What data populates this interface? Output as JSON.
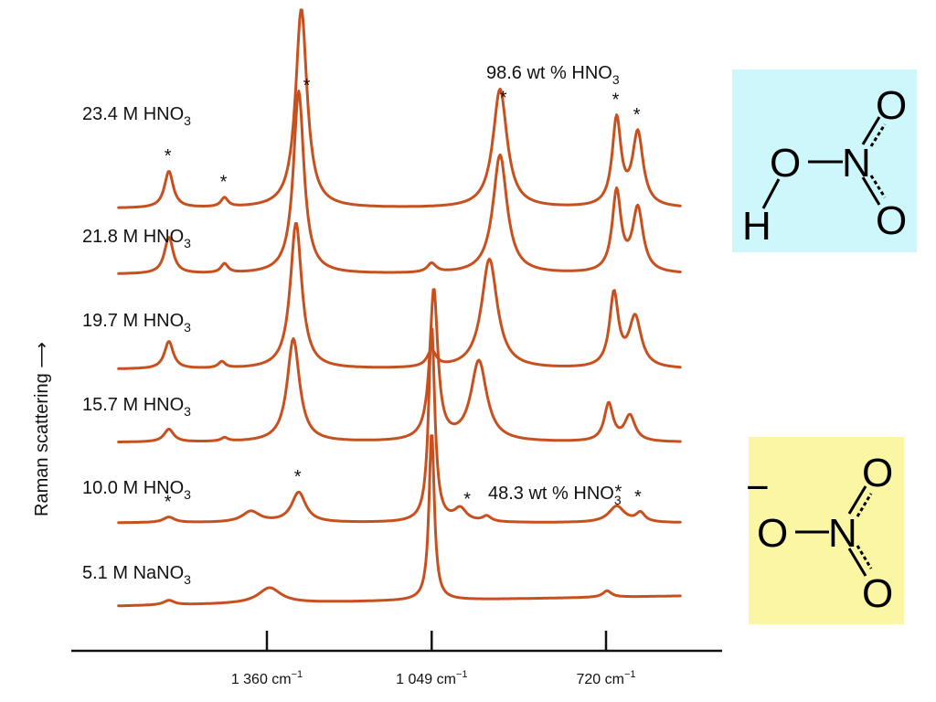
{
  "chart_data": {
    "type": "line",
    "title": "",
    "ylabel": "Raman scattering",
    "xlabel": "",
    "x_unit": "cm⁻¹",
    "x_direction": "decreasing",
    "xlim": [
      1640,
      530
    ],
    "xticks": [
      {
        "value": 1360,
        "label": "1 360 cm",
        "sup": "−1"
      },
      {
        "value": 1049,
        "label": "1 049 cm",
        "sup": "−1"
      },
      {
        "value": 720,
        "label": "720 cm",
        "sup": "−1"
      }
    ],
    "series": [
      {
        "name": "5.1 M NaNO3",
        "label_main": "5.1 M NaNO",
        "label_sub": "3",
        "baseline": [
          [
            1640,
            0
          ],
          [
            580,
            11
          ]
        ],
        "peaks": [
          [
            1545,
            5,
            12
          ],
          [
            1355,
            17,
            26
          ],
          [
            1049,
            185,
            6
          ],
          [
            718,
            7,
            10
          ]
        ]
      },
      {
        "name": "10.0 M HNO3",
        "label_main": "10.0 M HNO",
        "label_sub": "3",
        "baseline": [
          [
            1640,
            0
          ],
          [
            580,
            0
          ]
        ],
        "peaks": [
          [
            1545,
            6,
            13
          ],
          [
            1390,
            12,
            20
          ],
          [
            1300,
            33,
            16
          ],
          [
            1049,
            215,
            7
          ],
          [
            995,
            14,
            14
          ],
          [
            945,
            6,
            10
          ],
          [
            700,
            18,
            18
          ],
          [
            655,
            10,
            10
          ]
        ],
        "stars_at": [
          1545,
          1300,
          980,
          695,
          658
        ]
      },
      {
        "name": "15.7 M HNO3",
        "label_main": "15.7 M HNO",
        "label_sub": "3",
        "baseline": [
          [
            1640,
            0
          ],
          [
            580,
            0
          ]
        ],
        "peaks": [
          [
            1545,
            14,
            11
          ],
          [
            1440,
            4,
            8
          ],
          [
            1310,
            113,
            14
          ],
          [
            1045,
            165,
            9
          ],
          [
            960,
            88,
            18
          ],
          [
            715,
            41,
            10
          ],
          [
            675,
            28,
            12
          ]
        ]
      },
      {
        "name": "19.7 M HNO3",
        "label_main": "19.7 M HNO",
        "label_sub": "3",
        "baseline": [
          [
            1640,
            0
          ],
          [
            580,
            0
          ]
        ],
        "peaks": [
          [
            1545,
            30,
            10
          ],
          [
            1445,
            7,
            8
          ],
          [
            1305,
            160,
            13
          ],
          [
            1049,
            18,
            10
          ],
          [
            940,
            120,
            18
          ],
          [
            705,
            80,
            10
          ],
          [
            665,
            55,
            14
          ]
        ]
      },
      {
        "name": "21.8 M HNO3",
        "label_main": "21.8 M HNO",
        "label_sub": "3",
        "baseline": [
          [
            1640,
            0
          ],
          [
            580,
            0
          ]
        ],
        "peaks": [
          [
            1545,
            40,
            10
          ],
          [
            1440,
            10,
            8
          ],
          [
            1300,
            200,
            12
          ],
          [
            1049,
            10,
            10
          ],
          [
            920,
            130,
            16
          ],
          [
            700,
            88,
            10
          ],
          [
            660,
            70,
            12
          ]
        ]
      },
      {
        "name": "23.4 M HNO3",
        "label_main": "23.4 M HNO",
        "label_sub": "3",
        "baseline": [
          [
            1640,
            0
          ],
          [
            580,
            0
          ]
        ],
        "peaks": [
          [
            1545,
            40,
            10
          ],
          [
            1440,
            10,
            8
          ],
          [
            1295,
            218,
            13
          ],
          [
            920,
            130,
            16
          ],
          [
            700,
            95,
            10
          ],
          [
            660,
            80,
            12
          ]
        ],
        "stars_at": [
          1545,
          1440,
          1283,
          912,
          700,
          660
        ]
      }
    ],
    "annotations": [
      {
        "id": "hno3-98",
        "main": "98.6 wt % HNO",
        "sub": "3"
      },
      {
        "id": "hno3-48",
        "main": "48.3 wt % HNO",
        "sub": "3"
      }
    ],
    "structures": [
      {
        "id": "nitric-acid",
        "name": "HNO3 structure",
        "background": "#cdf7fa",
        "atoms": [
          "H",
          "O",
          "N",
          "O",
          "O"
        ]
      },
      {
        "id": "nitrate-ion",
        "name": "NO3⁻ structure",
        "background": "#fbf6a3",
        "atoms": [
          "O",
          "N",
          "O",
          "O"
        ],
        "charge": "−"
      }
    ],
    "colors": {
      "curve": "#c8501e",
      "text": "#111111"
    }
  }
}
